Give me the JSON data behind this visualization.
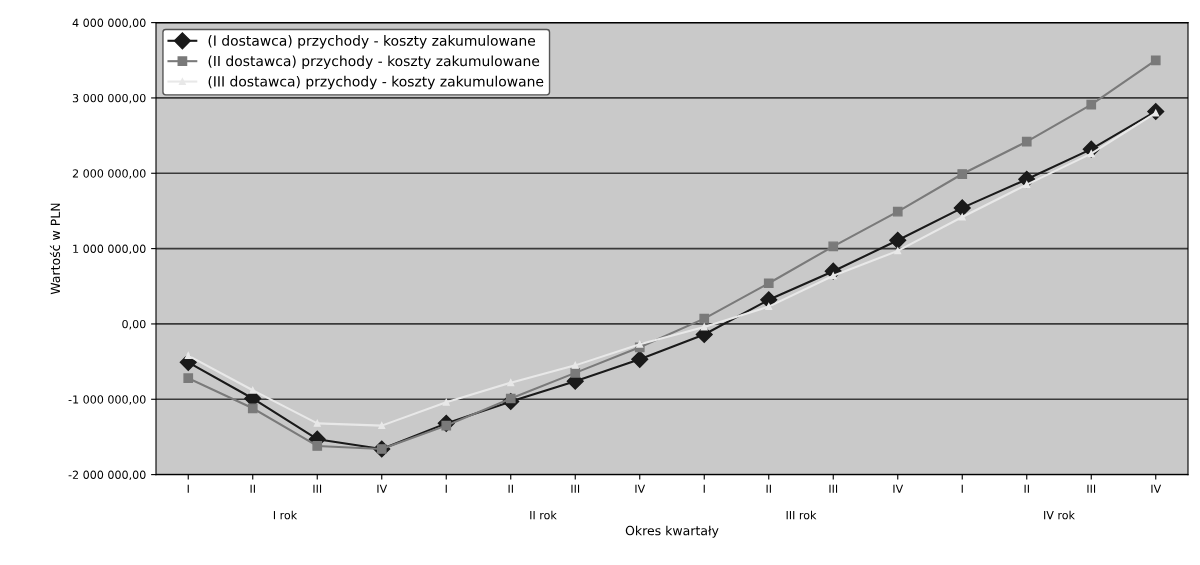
{
  "chart_data": {
    "type": "line",
    "xlabel": "Okres kwartały",
    "ylabel": "Wartość w PLN",
    "categories": [
      "I",
      "II",
      "III",
      "IV",
      "I",
      "II",
      "III",
      "IV",
      "I",
      "II",
      "III",
      "IV",
      "I",
      "II",
      "III",
      "IV"
    ],
    "annotations": [
      "I rok",
      "II rok",
      "III rok",
      "IV rok"
    ],
    "series": [
      {
        "name": "(I dostawca) przychody - koszty zakumulowane",
        "color": "#1a1a1a",
        "marker": "diamond",
        "values": [
          -510000,
          -990000,
          -1530000,
          -1660000,
          -1320000,
          -1030000,
          -760000,
          -470000,
          -140000,
          320000,
          700000,
          1110000,
          1540000,
          1920000,
          2320000,
          2820000
        ]
      },
      {
        "name": "(II dostawca) przychody - koszty zakumulowane",
        "color": "#7a7a7a",
        "marker": "square",
        "values": [
          -720000,
          -1120000,
          -1620000,
          -1660000,
          -1350000,
          -990000,
          -650000,
          -310000,
          70000,
          540000,
          1030000,
          1490000,
          1990000,
          2420000,
          2910000,
          3500000
        ]
      },
      {
        "name": "(III dostawca) przychody - koszty zakumulowane",
        "color": "#e8e8e8",
        "marker": "triangle",
        "values": [
          -420000,
          -880000,
          -1320000,
          -1350000,
          -1040000,
          -780000,
          -550000,
          -270000,
          -40000,
          230000,
          640000,
          970000,
          1420000,
          1850000,
          2260000,
          2800000
        ]
      }
    ],
    "ylim": [
      -2000000,
      4000000
    ],
    "yticks": [
      {
        "value": -2000000,
        "label": "-2 000 000,00"
      },
      {
        "value": -1000000,
        "label": "-1 000 000,00"
      },
      {
        "value": 0,
        "label": "0,00"
      },
      {
        "value": 1000000,
        "label": "1 000 000,00"
      },
      {
        "value": 2000000,
        "label": "2 000 000,00"
      },
      {
        "value": 3000000,
        "label": "3 000 000,00"
      },
      {
        "value": 4000000,
        "label": "4 000 000,00"
      }
    ],
    "grid": "y",
    "legend": "top left",
    "line_style": "solid"
  }
}
